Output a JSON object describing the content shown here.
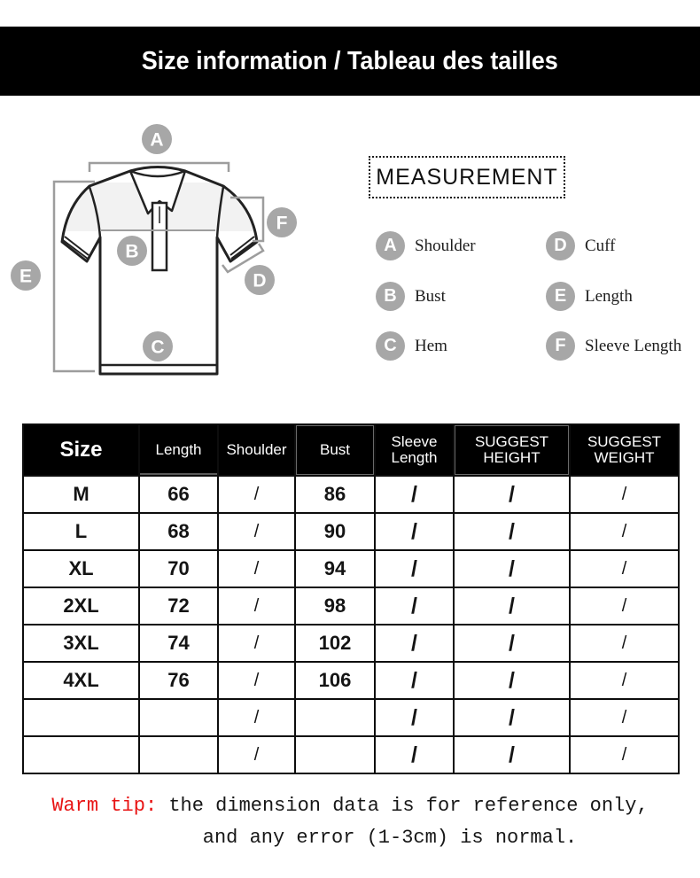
{
  "banner": {
    "title": "Size information / Tableau des tailles",
    "bg_color": "#000000",
    "text_color": "#ffffff"
  },
  "shirt_markers": {
    "a": "A",
    "b": "B",
    "c": "C",
    "d": "D",
    "e": "E",
    "f": "F"
  },
  "measurement": {
    "title": "MEASUREMENT",
    "marker_color": "#a7a7a7",
    "items": [
      {
        "key": "A",
        "label": "Shoulder"
      },
      {
        "key": "B",
        "label": "Bust"
      },
      {
        "key": "C",
        "label": "Hem"
      },
      {
        "key": "D",
        "label": "Cuff"
      },
      {
        "key": "E",
        "label": "Length"
      },
      {
        "key": "F",
        "label": "Sleeve Length"
      }
    ]
  },
  "size_table": {
    "header_bg": "#000000",
    "columns": [
      [
        "Size"
      ],
      [
        "Length"
      ],
      [
        "Shoulder"
      ],
      [
        "Bust"
      ],
      [
        "Sleeve",
        "Length"
      ],
      [
        "SUGGEST",
        "HEIGHT"
      ],
      [
        "SUGGEST",
        "WEIGHT"
      ]
    ],
    "rows": [
      [
        "M",
        "66",
        "/",
        "86",
        "/",
        "/",
        "/"
      ],
      [
        "L",
        "68",
        "/",
        "90",
        "/",
        "/",
        "/"
      ],
      [
        "XL",
        "70",
        "/",
        "94",
        "/",
        "/",
        "/"
      ],
      [
        "2XL",
        "72",
        "/",
        "98",
        "/",
        "/",
        "/"
      ],
      [
        "3XL",
        "74",
        "/",
        "102",
        "/",
        "/",
        "/"
      ],
      [
        "4XL",
        "76",
        "/",
        "106",
        "/",
        "/",
        "/"
      ],
      [
        "",
        "",
        "/",
        "",
        "/",
        "/",
        "/"
      ],
      [
        "",
        "",
        "/",
        "",
        "/",
        "/",
        "/"
      ]
    ]
  },
  "warm_tip": {
    "prefix": "Warm tip:",
    "line1": "the dimension data is for reference only,",
    "line2": "and any error (1-3cm) is normal.",
    "prefix_color": "#e81414"
  }
}
